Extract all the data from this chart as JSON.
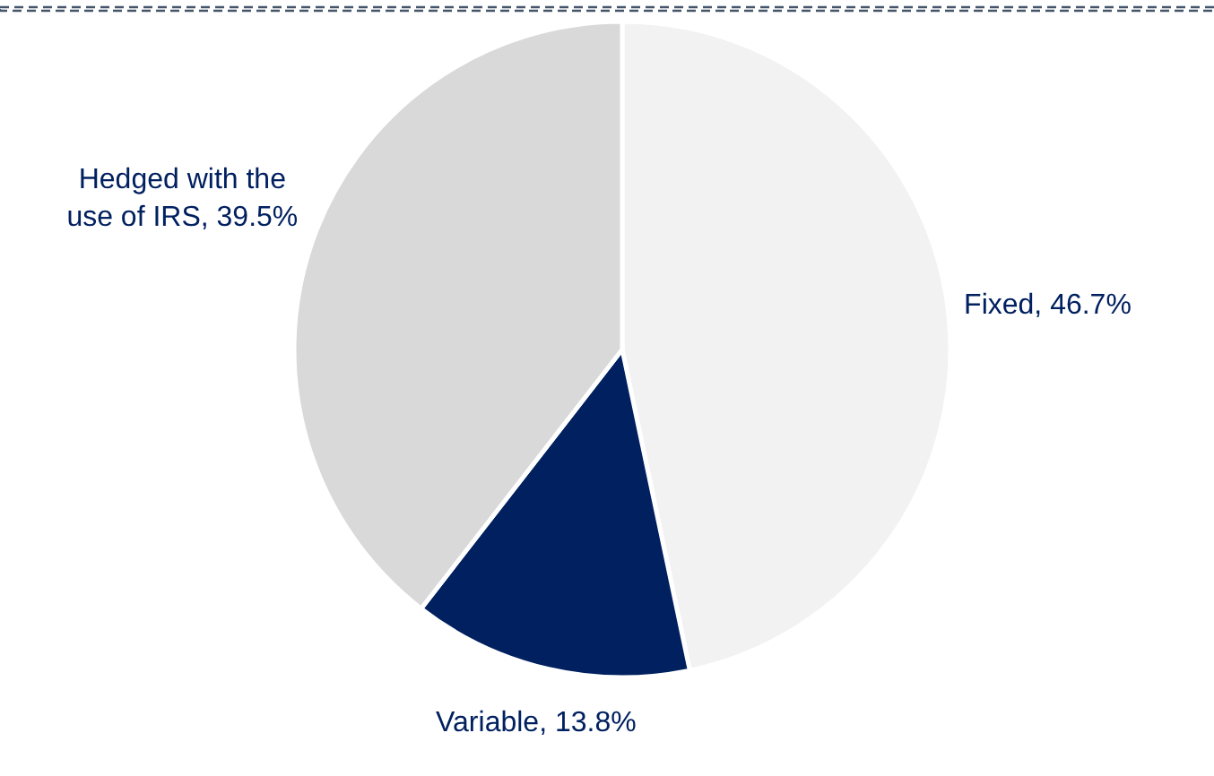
{
  "chart_data": {
    "type": "pie",
    "categories": [
      "Fixed",
      "Variable",
      "Hedged with the use of IRS"
    ],
    "values": [
      46.7,
      13.8,
      39.5
    ],
    "value_labels": [
      "46.7%",
      "13.8%",
      "39.5%"
    ],
    "colors": [
      "#f2f2f2",
      "#002060",
      "#d9d9d9"
    ],
    "legend": false
  }
}
